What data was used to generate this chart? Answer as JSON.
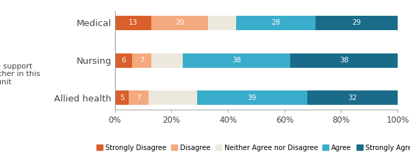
{
  "categories": [
    "Medical",
    "Nursing",
    "Allied health"
  ],
  "series": {
    "Strongly Disagree": [
      13,
      6,
      5
    ],
    "Disagree": [
      20,
      7,
      7
    ],
    "Neither Agree nor Disagree": [
      10,
      11,
      17
    ],
    "Agree": [
      28,
      38,
      39
    ],
    "Strongly Agree": [
      29,
      38,
      32
    ]
  },
  "colors": {
    "Strongly Disagree": "#D95F2B",
    "Disagree": "#F4A97F",
    "Neither Agree nor Disagree": "#EDE8DC",
    "Agree": "#3AACCC",
    "Strongly Agree": "#1A6B8A"
  },
  "show_label": {
    "Strongly Disagree": true,
    "Disagree": true,
    "Neither Agree nor Disagree": false,
    "Agree": true,
    "Strongly Agree": true
  },
  "label_color": {
    "Strongly Disagree": "white",
    "Disagree": "white",
    "Neither Agree nor Disagree": "#888888",
    "Agree": "white",
    "Strongly Agree": "white"
  },
  "min_label_val": 5,
  "ylabel_text": "People support\none another in this\nunit",
  "xlabel_ticks": [
    "0%",
    "20%",
    "40%",
    "60%",
    "80%",
    "100%"
  ],
  "xlabel_vals": [
    0,
    20,
    40,
    60,
    80,
    100
  ],
  "bar_height": 0.38,
  "figsize": [
    5.99,
    2.35
  ],
  "dpi": 100,
  "legend_order": [
    "Strongly Disagree",
    "Disagree",
    "Neither Agree nor Disagree",
    "Agree",
    "Strongly Agree"
  ]
}
